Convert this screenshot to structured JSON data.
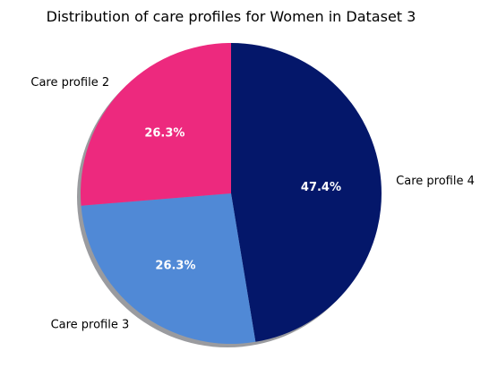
{
  "chart_data": {
    "type": "pie",
    "title": "Distribution of care profiles for Women in Dataset 3",
    "slices": [
      {
        "label": "Care profile 4",
        "value": 47.4,
        "pct_label": "47.4%",
        "color": "#04176a"
      },
      {
        "label": "Care profile 3",
        "value": 26.3,
        "pct_label": "26.3%",
        "color": "#5089d6"
      },
      {
        "label": "Care profile 2",
        "value": 26.3,
        "pct_label": "26.3%",
        "color": "#ed297e"
      }
    ],
    "start_angle_deg": 90,
    "direction": "clockwise",
    "shadow": true
  }
}
